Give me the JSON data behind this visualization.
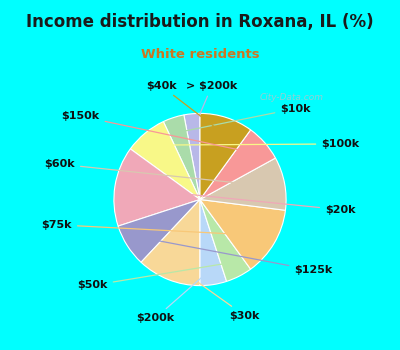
{
  "title": "Income distribution in Roxana, IL (%)",
  "subtitle": "White residents",
  "bg_color": "#00FFFF",
  "chart_bg_top": "#d0ede0",
  "chart_bg_bottom": "#e8f5ee",
  "watermark": "City-Data.com",
  "labels": [
    "> $200k",
    "$10k",
    "$100k",
    "$20k",
    "$125k",
    "$30k",
    "$200k",
    "$50k",
    "$75k",
    "$60k",
    "$150k",
    "$40k"
  ],
  "values": [
    3,
    4,
    8,
    15,
    8,
    12,
    5,
    5,
    13,
    10,
    7,
    10
  ],
  "colors": [
    "#b8b8e8",
    "#aadcaa",
    "#f8f888",
    "#f0a8b8",
    "#9898cc",
    "#f8d898",
    "#b8d8f8",
    "#b8e8a8",
    "#f8c878",
    "#d8c8b0",
    "#f89898",
    "#c8a020"
  ],
  "startangle": 90,
  "title_fontsize": 12,
  "subtitle_fontsize": 9.5,
  "label_fontsize": 8,
  "title_color": "#1a1a1a",
  "subtitle_color": "#cc7722"
}
